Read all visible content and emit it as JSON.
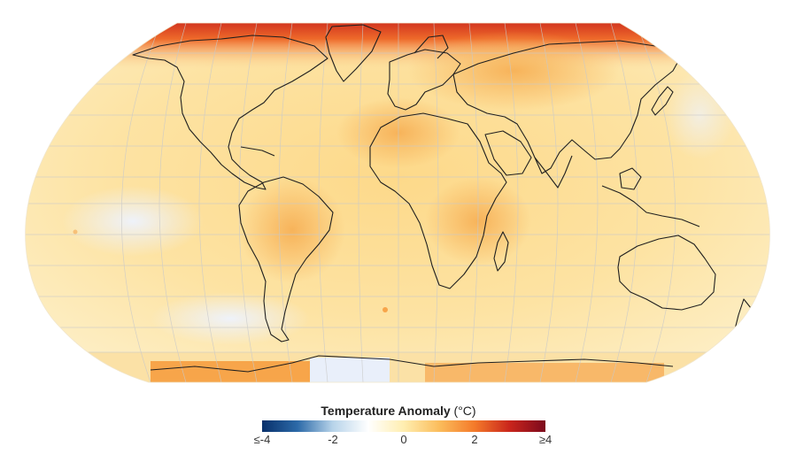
{
  "map": {
    "projection": "robinson",
    "view": "global",
    "background": "#ffffff",
    "coastline_color": "#1a1a1a",
    "graticule_color": "#c8c8c8"
  },
  "legend": {
    "title_bold": "Temperature Anomaly",
    "title_unit": "(°C)",
    "ticks": [
      "≤-4",
      "-2",
      "0",
      "2",
      "≥4"
    ],
    "range": [
      -4,
      4
    ],
    "colors": [
      "#08306b",
      "#2c6aa8",
      "#b8d4ea",
      "#ffffff",
      "#ffeeb0",
      "#fbbd5c",
      "#f47a2a",
      "#c9251c",
      "#7c0a1d"
    ]
  }
}
